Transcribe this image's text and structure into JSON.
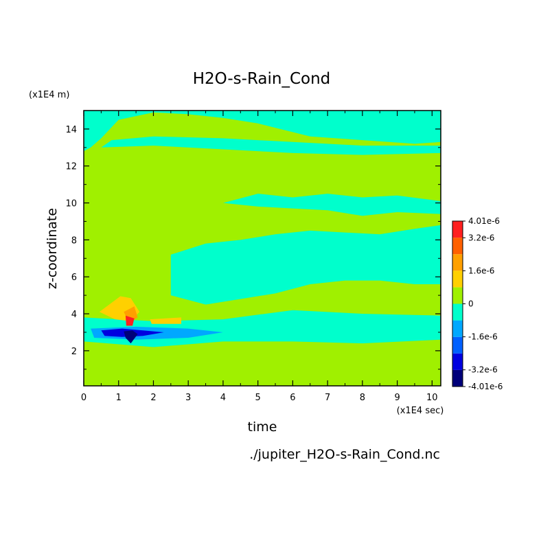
{
  "chart_data": {
    "type": "heatmap",
    "title": "H2O-s-Rain_Cond",
    "xlabel": "time",
    "ylabel": "z-coordinate",
    "x_unit": "(x1E4 sec)",
    "y_unit": "(x1E4 m)",
    "xlim": [
      0,
      10.25
    ],
    "ylim": [
      0.1,
      15
    ],
    "x_ticks": [
      "0",
      "1",
      "2",
      "3",
      "4",
      "5",
      "6",
      "7",
      "8",
      "9",
      "10"
    ],
    "y_ticks": [
      "2",
      "4",
      "6",
      "8",
      "10",
      "12",
      "14"
    ],
    "footer": "./jupiter_H2O-s-Rain_Cond.nc",
    "colorbar": {
      "labels": [
        "4.01e-6",
        "3.2e-6",
        "1.6e-6",
        "0",
        "-1.6e-6",
        "-3.2e-6",
        "-4.01e-6"
      ],
      "levels": [
        -4.01e-06,
        -3.2e-06,
        -2.4e-06,
        -1.6e-06,
        -8e-07,
        0,
        8e-07,
        1.6e-06,
        2.4e-06,
        3.2e-06,
        4.01e-06
      ],
      "colors": [
        "#00007a",
        "#0000e0",
        "#0060ff",
        "#00a8ff",
        "#00ffcc",
        "#a0f000",
        "#ffd000",
        "#ffa000",
        "#ff6000",
        "#ff2020"
      ]
    },
    "regions": [
      {
        "value": -5e-07,
        "polygon": [
          [
            0,
            15
          ],
          [
            10.25,
            15
          ],
          [
            10.25,
            13.3
          ],
          [
            9.5,
            13.2
          ],
          [
            8,
            13.4
          ],
          [
            6.5,
            13.6
          ],
          [
            5,
            14.3
          ],
          [
            4,
            14.6
          ],
          [
            3,
            14.8
          ],
          [
            2,
            14.9
          ],
          [
            1,
            14.5
          ],
          [
            0.5,
            13.5
          ],
          [
            0.2,
            13
          ],
          [
            0,
            12.8
          ]
        ]
      },
      {
        "value": -5e-07,
        "polygon": [
          [
            0.5,
            13
          ],
          [
            2,
            13.1
          ],
          [
            4,
            12.9
          ],
          [
            6,
            12.7
          ],
          [
            8,
            12.6
          ],
          [
            10.25,
            12.7
          ],
          [
            10.25,
            13.1
          ],
          [
            8,
            13.1
          ],
          [
            6,
            13.3
          ],
          [
            4,
            13.5
          ],
          [
            2,
            13.6
          ],
          [
            0.8,
            13.4
          ]
        ]
      },
      {
        "value": -5e-07,
        "polygon": [
          [
            4,
            10
          ],
          [
            5,
            10.5
          ],
          [
            6,
            10.3
          ],
          [
            7,
            10.5
          ],
          [
            8,
            10.3
          ],
          [
            9,
            10.4
          ],
          [
            10.25,
            10.1
          ],
          [
            10.25,
            9.4
          ],
          [
            9,
            9.5
          ],
          [
            8,
            9.3
          ],
          [
            7,
            9.6
          ],
          [
            6,
            9.7
          ],
          [
            5,
            9.8
          ]
        ]
      },
      {
        "value": -5e-07,
        "polygon": [
          [
            2.5,
            7.2
          ],
          [
            3.5,
            7.8
          ],
          [
            4.5,
            8
          ],
          [
            5.5,
            8.3
          ],
          [
            6.5,
            8.5
          ],
          [
            7.5,
            8.4
          ],
          [
            8.5,
            8.3
          ],
          [
            9.5,
            8.6
          ],
          [
            10.25,
            8.8
          ],
          [
            10.25,
            5.6
          ],
          [
            9.5,
            5.6
          ],
          [
            8.5,
            5.8
          ],
          [
            7.5,
            5.8
          ],
          [
            6.5,
            5.6
          ],
          [
            5.5,
            5.1
          ],
          [
            4.5,
            4.8
          ],
          [
            3.5,
            4.5
          ],
          [
            2.5,
            5
          ]
        ]
      },
      {
        "value": -5e-07,
        "polygon": [
          [
            0,
            3.8
          ],
          [
            2,
            3.6
          ],
          [
            4,
            3.7
          ],
          [
            6,
            4.2
          ],
          [
            8,
            4
          ],
          [
            10.25,
            3.9
          ],
          [
            10.25,
            2.6
          ],
          [
            8,
            2.4
          ],
          [
            6,
            2.5
          ],
          [
            4,
            2.5
          ],
          [
            2,
            2.2
          ],
          [
            0,
            2.5
          ]
        ]
      },
      {
        "value": -1.4e-06,
        "polygon": [
          [
            0.2,
            3.2
          ],
          [
            1.5,
            3.3
          ],
          [
            3,
            3.2
          ],
          [
            4,
            3
          ],
          [
            3,
            2.7
          ],
          [
            1.5,
            2.6
          ],
          [
            0.3,
            2.7
          ]
        ]
      },
      {
        "value": -2.6e-06,
        "polygon": [
          [
            0.5,
            3.1
          ],
          [
            1.1,
            3.2
          ],
          [
            1.7,
            3.1
          ],
          [
            2.3,
            3
          ],
          [
            1.7,
            2.8
          ],
          [
            1.1,
            2.75
          ],
          [
            0.6,
            2.8
          ]
        ]
      },
      {
        "value": -3.6e-06,
        "polygon": [
          [
            1.15,
            3.05
          ],
          [
            1.4,
            3.1
          ],
          [
            1.55,
            2.9
          ],
          [
            1.35,
            2.4
          ],
          [
            1.2,
            2.7
          ]
        ]
      },
      {
        "value": 1.2e-06,
        "polygon": [
          [
            0.45,
            4.1
          ],
          [
            1.05,
            4.95
          ],
          [
            1.35,
            4.85
          ],
          [
            1.6,
            4.1
          ],
          [
            1.35,
            3.6
          ],
          [
            0.9,
            3.7
          ]
        ]
      },
      {
        "value": 1.2e-06,
        "polygon": [
          [
            1.9,
            3.7
          ],
          [
            2.8,
            3.8
          ],
          [
            2.8,
            3.45
          ],
          [
            1.95,
            3.45
          ]
        ]
      },
      {
        "value": 2.2e-06,
        "polygon": [
          [
            1.15,
            4.1
          ],
          [
            1.45,
            4.4
          ],
          [
            1.55,
            3.8
          ],
          [
            1.3,
            3.5
          ]
        ]
      },
      {
        "value": 3.3e-06,
        "polygon": [
          [
            1.2,
            3.9
          ],
          [
            1.45,
            3.75
          ],
          [
            1.4,
            3.35
          ],
          [
            1.22,
            3.35
          ]
        ]
      }
    ]
  }
}
